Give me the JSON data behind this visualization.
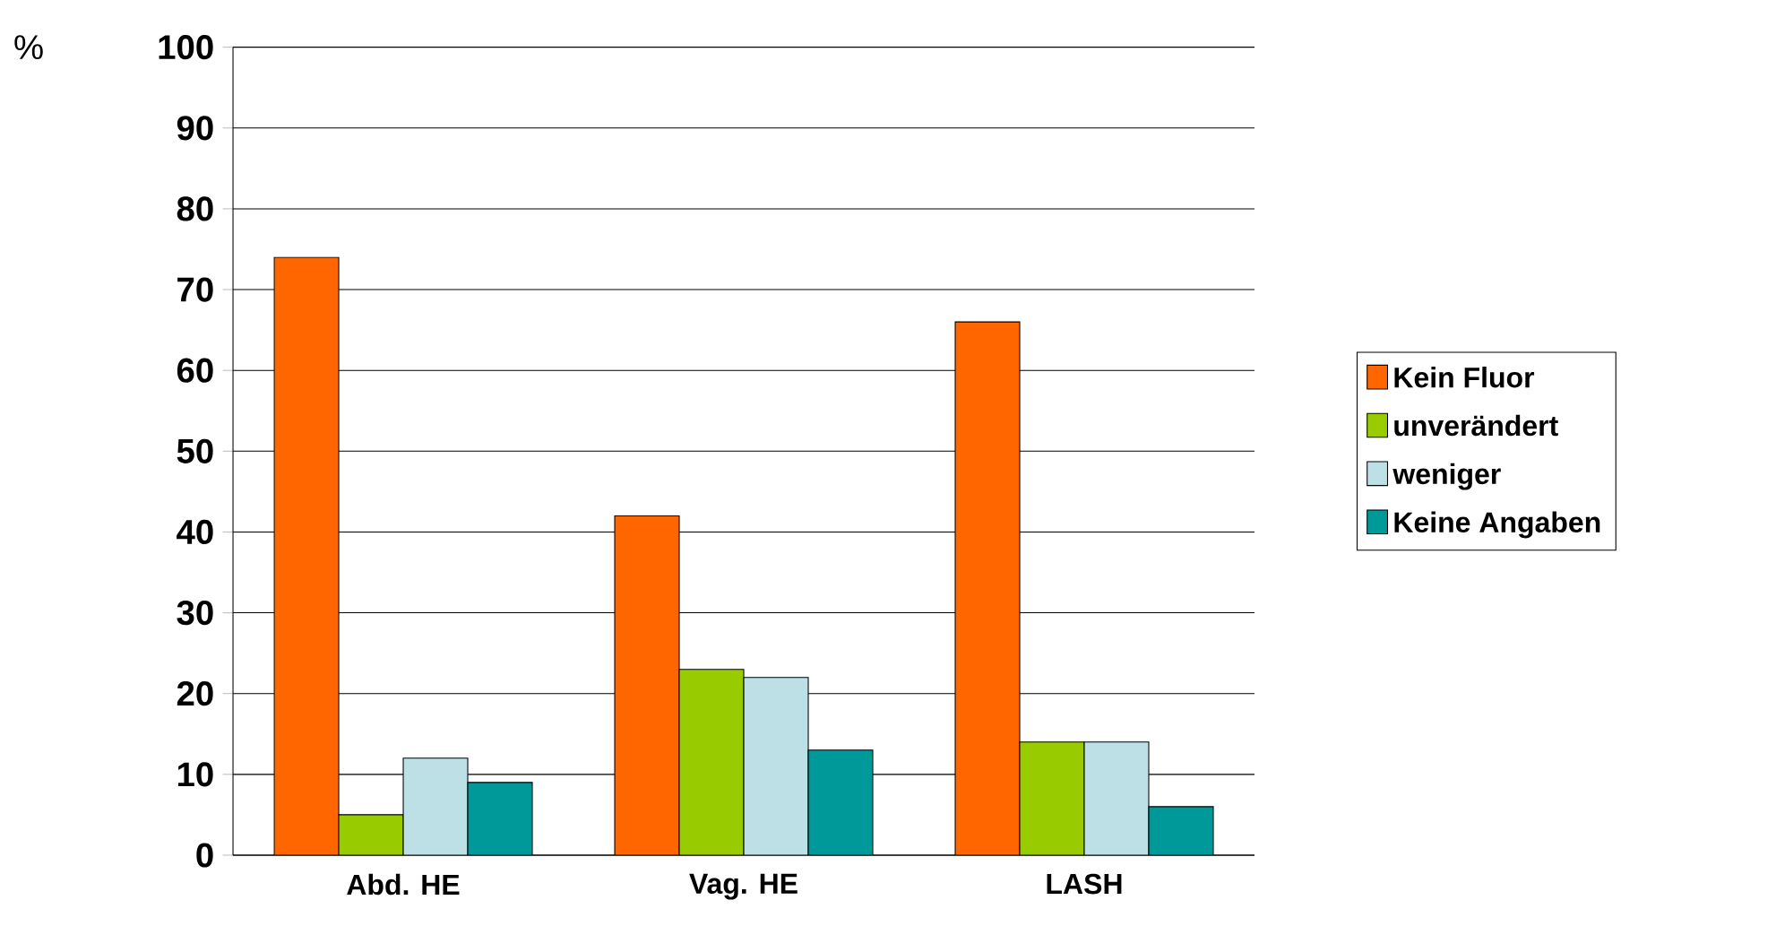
{
  "chart_data": {
    "type": "bar",
    "ylabel": "%",
    "categories": [
      "Abd. HE",
      "Vag. HE",
      "LASH"
    ],
    "series": [
      {
        "name": "Kein Fluor",
        "color": "#ff6600",
        "values": [
          74,
          42,
          66
        ]
      },
      {
        "name": "unverändert",
        "color": "#99cc00",
        "values": [
          5,
          23,
          14
        ]
      },
      {
        "name": "weniger",
        "color": "#bde0e6",
        "values": [
          12,
          22,
          14
        ]
      },
      {
        "name": "Keine Angaben",
        "color": "#009999",
        "values": [
          9,
          13,
          6
        ]
      }
    ],
    "ylim": [
      0,
      100
    ],
    "yticks": [
      0,
      10,
      20,
      30,
      40,
      50,
      60,
      70,
      80,
      90,
      100
    ],
    "grid": "y",
    "legend": "right"
  }
}
